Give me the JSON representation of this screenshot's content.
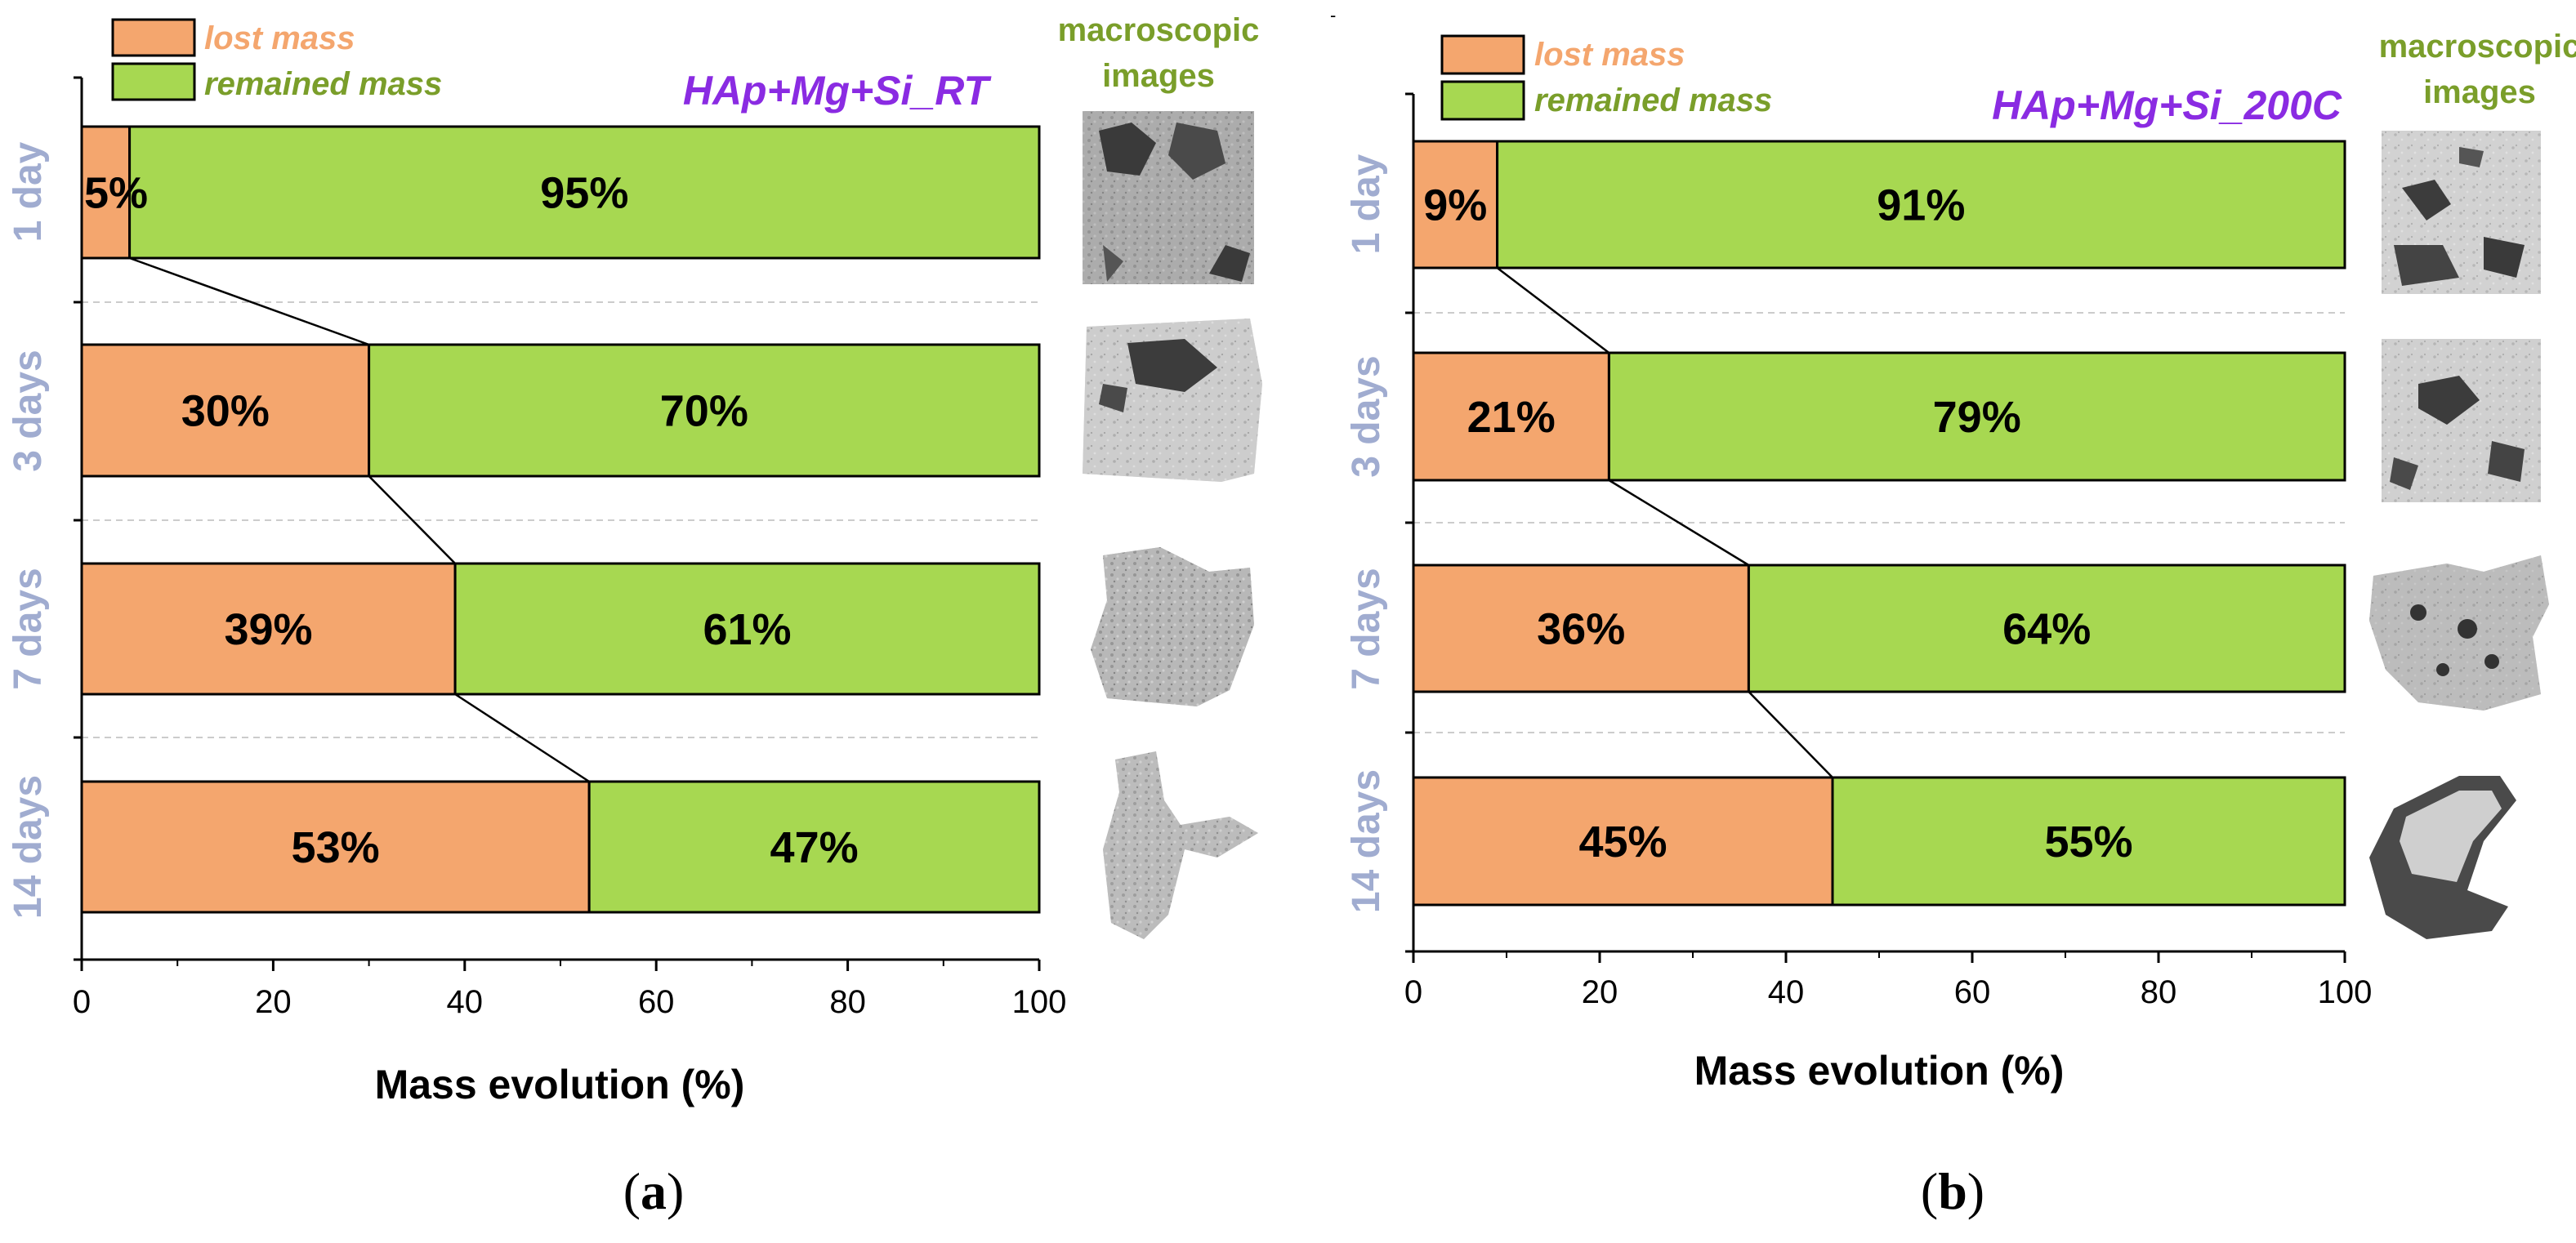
{
  "colors": {
    "lost": "#f4a66e",
    "remained": "#a7d851",
    "lost_text": "#f4a66e",
    "remained_text": "#7a9e2a",
    "category": "#a0acd0",
    "series_title": "#8a2be2"
  },
  "legend": {
    "lost": "lost mass",
    "remained": "remained mass"
  },
  "macro_title": [
    "macroscopic",
    "images"
  ],
  "chart_data": [
    {
      "type": "bar",
      "stacked": true,
      "orientation": "horizontal",
      "title": "HAp+Mg+Si_RT",
      "panel": "a",
      "caption": [
        "(",
        "a",
        ")"
      ],
      "xlabel": "Mass evolution (%)",
      "xlim": [
        0,
        100
      ],
      "xticks": [
        "0",
        "20",
        "40",
        "60",
        "80",
        "100"
      ],
      "categories": [
        "1 day",
        "3 days",
        "7 days",
        "14 days"
      ],
      "series": [
        {
          "name": "lost mass",
          "values": [
            5,
            30,
            39,
            53
          ],
          "labels": [
            "5%",
            "30%",
            "39%",
            "53%"
          ]
        },
        {
          "name": "remained mass",
          "values": [
            95,
            70,
            61,
            47
          ],
          "labels": [
            "95%",
            "70%",
            "61%",
            "47%"
          ]
        }
      ]
    },
    {
      "type": "bar",
      "stacked": true,
      "orientation": "horizontal",
      "title": "HAp+Mg+Si_200C",
      "panel": "b",
      "caption": [
        "(",
        "b",
        ")"
      ],
      "xlabel": "Mass evolution (%)",
      "xlim": [
        0,
        100
      ],
      "xticks": [
        "0",
        "20",
        "40",
        "60",
        "80",
        "100"
      ],
      "categories": [
        "1 day",
        "3 days",
        "7 days",
        "14 days"
      ],
      "series": [
        {
          "name": "lost mass",
          "values": [
            9,
            21,
            36,
            45
          ],
          "labels": [
            "9%",
            "21%",
            "36%",
            "45%"
          ]
        },
        {
          "name": "remained mass",
          "values": [
            91,
            79,
            64,
            55
          ],
          "labels": [
            "91%",
            "79%",
            "64%",
            "55%"
          ]
        }
      ]
    }
  ]
}
